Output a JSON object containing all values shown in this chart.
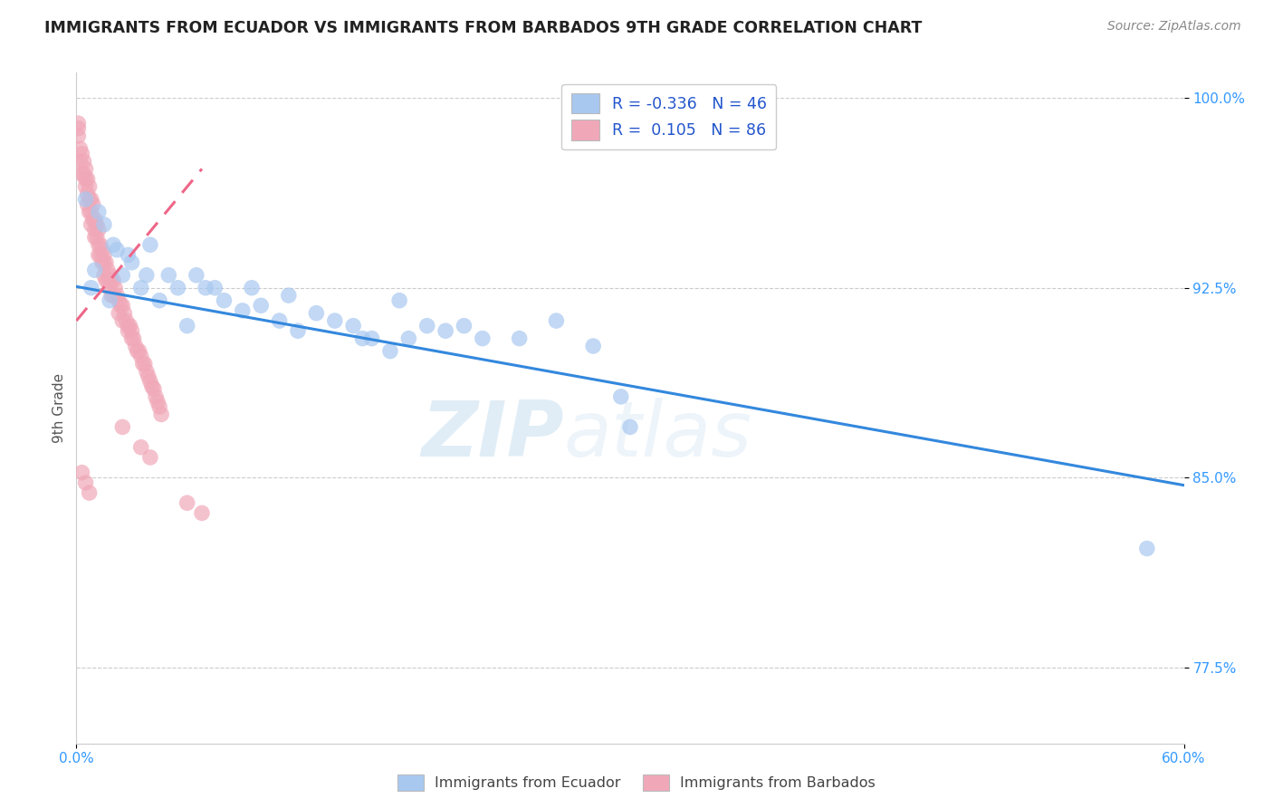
{
  "title": "IMMIGRANTS FROM ECUADOR VS IMMIGRANTS FROM BARBADOS 9TH GRADE CORRELATION CHART",
  "source_text": "Source: ZipAtlas.com",
  "ylabel": "9th Grade",
  "xlim": [
    0.0,
    0.6
  ],
  "ylim": [
    0.745,
    1.01
  ],
  "ytick_positions": [
    0.775,
    0.85,
    0.925,
    1.0
  ],
  "ytick_labels": [
    "77.5%",
    "85.0%",
    "92.5%",
    "100.0%"
  ],
  "ecuador_R": -0.336,
  "ecuador_N": 46,
  "barbados_R": 0.105,
  "barbados_N": 86,
  "ecuador_color": "#a8c8f0",
  "barbados_color": "#f0a8b8",
  "ecuador_line_color": "#3388dd",
  "barbados_line_color": "#ee6688",
  "ecuador_line_x0": 0.0,
  "ecuador_line_x1": 0.6,
  "ecuador_line_y0": 0.9255,
  "ecuador_line_y1": 0.847,
  "barbados_line_x0": 0.0,
  "barbados_line_x1": 0.068,
  "barbados_line_y0": 0.912,
  "barbados_line_y1": 0.972,
  "ecuador_scatter_x": [
    0.005,
    0.008,
    0.01,
    0.012,
    0.015,
    0.018,
    0.02,
    0.022,
    0.025,
    0.028,
    0.03,
    0.035,
    0.038,
    0.04,
    0.045,
    0.05,
    0.055,
    0.06,
    0.065,
    0.07,
    0.075,
    0.08,
    0.09,
    0.095,
    0.1,
    0.11,
    0.115,
    0.12,
    0.13,
    0.14,
    0.15,
    0.155,
    0.16,
    0.17,
    0.175,
    0.18,
    0.19,
    0.2,
    0.21,
    0.22,
    0.24,
    0.26,
    0.28,
    0.3,
    0.295,
    0.58
  ],
  "ecuador_scatter_y": [
    0.96,
    0.925,
    0.932,
    0.955,
    0.95,
    0.92,
    0.942,
    0.94,
    0.93,
    0.938,
    0.935,
    0.925,
    0.93,
    0.942,
    0.92,
    0.93,
    0.925,
    0.91,
    0.93,
    0.925,
    0.925,
    0.92,
    0.916,
    0.925,
    0.918,
    0.912,
    0.922,
    0.908,
    0.915,
    0.912,
    0.91,
    0.905,
    0.905,
    0.9,
    0.92,
    0.905,
    0.91,
    0.908,
    0.91,
    0.905,
    0.905,
    0.912,
    0.902,
    0.87,
    0.882,
    0.822
  ],
  "barbados_scatter_x": [
    0.001,
    0.001,
    0.002,
    0.002,
    0.003,
    0.003,
    0.004,
    0.004,
    0.005,
    0.005,
    0.005,
    0.006,
    0.006,
    0.006,
    0.007,
    0.007,
    0.007,
    0.008,
    0.008,
    0.008,
    0.009,
    0.009,
    0.01,
    0.01,
    0.01,
    0.011,
    0.011,
    0.012,
    0.012,
    0.012,
    0.013,
    0.013,
    0.014,
    0.014,
    0.015,
    0.015,
    0.015,
    0.016,
    0.016,
    0.017,
    0.017,
    0.018,
    0.018,
    0.019,
    0.019,
    0.02,
    0.02,
    0.021,
    0.022,
    0.023,
    0.023,
    0.024,
    0.025,
    0.025,
    0.026,
    0.027,
    0.028,
    0.028,
    0.029,
    0.03,
    0.03,
    0.031,
    0.032,
    0.033,
    0.034,
    0.035,
    0.036,
    0.037,
    0.038,
    0.039,
    0.04,
    0.041,
    0.042,
    0.043,
    0.044,
    0.045,
    0.046,
    0.003,
    0.005,
    0.007,
    0.025,
    0.035,
    0.04,
    0.06,
    0.068,
    0.001
  ],
  "barbados_scatter_y": [
    0.99,
    0.985,
    0.98,
    0.975,
    0.97,
    0.978,
    0.975,
    0.97,
    0.968,
    0.972,
    0.965,
    0.968,
    0.962,
    0.958,
    0.965,
    0.96,
    0.955,
    0.96,
    0.955,
    0.95,
    0.958,
    0.952,
    0.952,
    0.948,
    0.945,
    0.95,
    0.945,
    0.948,
    0.942,
    0.938,
    0.942,
    0.938,
    0.94,
    0.935,
    0.938,
    0.935,
    0.93,
    0.935,
    0.928,
    0.932,
    0.928,
    0.93,
    0.925,
    0.928,
    0.922,
    0.928,
    0.922,
    0.925,
    0.922,
    0.92,
    0.915,
    0.918,
    0.918,
    0.912,
    0.915,
    0.912,
    0.91,
    0.908,
    0.91,
    0.908,
    0.905,
    0.905,
    0.902,
    0.9,
    0.9,
    0.898,
    0.895,
    0.895,
    0.892,
    0.89,
    0.888,
    0.886,
    0.885,
    0.882,
    0.88,
    0.878,
    0.875,
    0.852,
    0.848,
    0.844,
    0.87,
    0.862,
    0.858,
    0.84,
    0.836,
    0.988
  ],
  "watermark_zip": "ZIP",
  "watermark_atlas": "atlas",
  "title_fontsize": 12.5,
  "source_fontsize": 10,
  "tick_fontsize": 11,
  "ylabel_fontsize": 11
}
